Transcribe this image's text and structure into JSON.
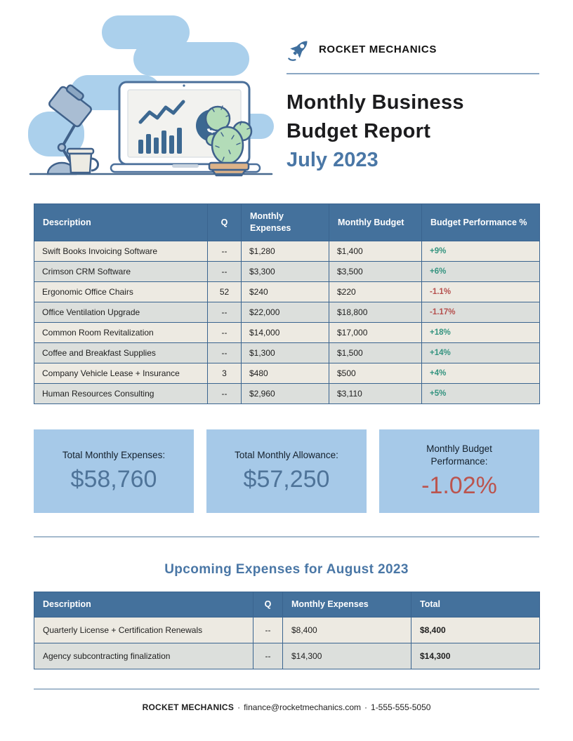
{
  "colors": {
    "header_blue": "#44719c",
    "table_border": "#3a648f",
    "row_cream": "#edeae2",
    "row_gray": "#dcdfdc",
    "card_blue": "#a6c9e8",
    "accent_blue": "#4a77a6",
    "positive_green": "#359480",
    "negative_red": "#b5504e"
  },
  "logo": {
    "name": "ROCKET MECHANICS"
  },
  "title": {
    "main": "Monthly Business Budget Report",
    "period": "July 2023"
  },
  "budget_table": {
    "headers": [
      "Description",
      "Q",
      "Monthly Expenses",
      "Monthly Budget",
      "Budget Performance %"
    ],
    "rows": [
      {
        "description": "Swift Books Invoicing Software",
        "q": "--",
        "expenses": "$1,280",
        "budget": "$1,400",
        "performance": "+9%"
      },
      {
        "description": "Crimson CRM Software",
        "q": "--",
        "expenses": "$3,300",
        "budget": "$3,500",
        "performance": "+6%"
      },
      {
        "description": "Ergonomic Office Chairs",
        "q": "52",
        "expenses": "$240",
        "budget": "$220",
        "performance": "-1.1%"
      },
      {
        "description": "Office Ventilation Upgrade",
        "q": "--",
        "expenses": "$22,000",
        "budget": "$18,800",
        "performance": "-1.17%"
      },
      {
        "description": "Common Room Revitalization",
        "q": "--",
        "expenses": "$14,000",
        "budget": "$17,000",
        "performance": "+18%"
      },
      {
        "description": "Coffee and Breakfast Supplies",
        "q": "--",
        "expenses": "$1,300",
        "budget": "$1,500",
        "performance": "+14%"
      },
      {
        "description": "Company Vehicle Lease + Insurance",
        "q": "3",
        "expenses": "$480",
        "budget": "$500",
        "performance": "+4%"
      },
      {
        "description": "Human Resources Consulting",
        "q": "--",
        "expenses": "$2,960",
        "budget": "$3,110",
        "performance": "+5%"
      }
    ]
  },
  "summary_cards": [
    {
      "label": "Total Monthly Expenses:",
      "value": "$58,760"
    },
    {
      "label": "Total Monthly Allowance:",
      "value": "$57,250"
    },
    {
      "label": "Monthly Budget Performance:",
      "value": "-1.02%"
    }
  ],
  "upcoming": {
    "heading": "Upcoming Expenses for August 2023",
    "headers": [
      "Description",
      "Q",
      "Monthly Expenses",
      "Total"
    ],
    "rows": [
      {
        "description": "Quarterly License + Certification Renewals",
        "q": "--",
        "expenses": "$8,400",
        "total": "$8,400"
      },
      {
        "description": "Agency subcontracting finalization",
        "q": "--",
        "expenses": "$14,300",
        "total": "$14,300"
      }
    ]
  },
  "footer": {
    "company": "ROCKET MECHANICS",
    "separator": "·",
    "email": "finance@rocketmechanics.com",
    "phone": "1-555-555-5050"
  }
}
